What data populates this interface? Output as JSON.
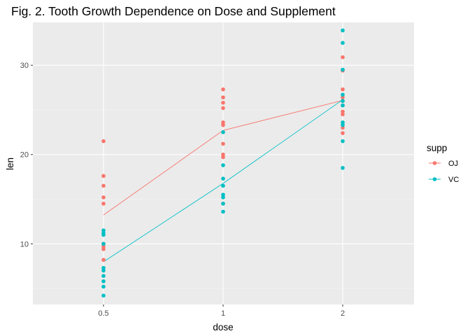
{
  "chart_data": {
    "type": "scatter",
    "title": "Fig. 2. Tooth Growth Dependence on Dose and Supplement",
    "xlabel": "dose",
    "ylabel": "len",
    "x_ticks": [
      "0.5",
      "1",
      "2"
    ],
    "y_ticks": [
      10,
      20,
      30
    ],
    "ylim": [
      3.2,
      34.8
    ],
    "grid": true,
    "legend": {
      "title": "supp",
      "placement": "right"
    },
    "series": [
      {
        "name": "OJ",
        "color": "#F8766D",
        "points": [
          {
            "x": "0.5",
            "y": 21.5
          },
          {
            "x": "0.5",
            "y": 17.6
          },
          {
            "x": "0.5",
            "y": 16.5
          },
          {
            "x": "0.5",
            "y": 15.2
          },
          {
            "x": "0.5",
            "y": 14.5
          },
          {
            "x": "0.5",
            "y": 10.0
          },
          {
            "x": "0.5",
            "y": 9.7
          },
          {
            "x": "0.5",
            "y": 9.4
          },
          {
            "x": "0.5",
            "y": 8.2
          },
          {
            "x": "1",
            "y": 27.3
          },
          {
            "x": "1",
            "y": 26.4
          },
          {
            "x": "1",
            "y": 25.8
          },
          {
            "x": "1",
            "y": 25.2
          },
          {
            "x": "1",
            "y": 23.6
          },
          {
            "x": "1",
            "y": 23.3
          },
          {
            "x": "1",
            "y": 21.2
          },
          {
            "x": "1",
            "y": 20.0
          },
          {
            "x": "1",
            "y": 19.7
          },
          {
            "x": "1",
            "y": 14.5
          },
          {
            "x": "2",
            "y": 30.9
          },
          {
            "x": "2",
            "y": 29.4
          },
          {
            "x": "2",
            "y": 27.3
          },
          {
            "x": "2",
            "y": 26.4
          },
          {
            "x": "2",
            "y": 25.5
          },
          {
            "x": "2",
            "y": 24.8
          },
          {
            "x": "2",
            "y": 24.5
          },
          {
            "x": "2",
            "y": 23.0
          },
          {
            "x": "2",
            "y": 22.4
          },
          {
            "x": "2",
            "y": 26.0
          }
        ],
        "mean_line": [
          {
            "x": "0.5",
            "y": 13.23
          },
          {
            "x": "1",
            "y": 22.7
          },
          {
            "x": "2",
            "y": 26.06
          }
        ]
      },
      {
        "name": "VC",
        "color": "#00BFC4",
        "points": [
          {
            "x": "0.5",
            "y": 11.5
          },
          {
            "x": "0.5",
            "y": 11.2
          },
          {
            "x": "0.5",
            "y": 10.0
          },
          {
            "x": "0.5",
            "y": 7.3
          },
          {
            "x": "0.5",
            "y": 7.0
          },
          {
            "x": "0.5",
            "y": 6.4
          },
          {
            "x": "0.5",
            "y": 5.8
          },
          {
            "x": "0.5",
            "y": 5.2
          },
          {
            "x": "0.5",
            "y": 4.2
          },
          {
            "x": "0.5",
            "y": 11.0
          },
          {
            "x": "1",
            "y": 22.5
          },
          {
            "x": "1",
            "y": 18.8
          },
          {
            "x": "1",
            "y": 17.3
          },
          {
            "x": "1",
            "y": 16.5
          },
          {
            "x": "1",
            "y": 15.5
          },
          {
            "x": "1",
            "y": 15.2
          },
          {
            "x": "1",
            "y": 14.5
          },
          {
            "x": "1",
            "y": 13.6
          },
          {
            "x": "2",
            "y": 33.9
          },
          {
            "x": "2",
            "y": 32.5
          },
          {
            "x": "2",
            "y": 29.5
          },
          {
            "x": "2",
            "y": 26.7
          },
          {
            "x": "2",
            "y": 25.5
          },
          {
            "x": "2",
            "y": 23.6
          },
          {
            "x": "2",
            "y": 23.3
          },
          {
            "x": "2",
            "y": 21.5
          },
          {
            "x": "2",
            "y": 18.5
          },
          {
            "x": "2",
            "y": 26.0
          }
        ],
        "mean_line": [
          {
            "x": "0.5",
            "y": 7.98
          },
          {
            "x": "1",
            "y": 16.77
          },
          {
            "x": "2",
            "y": 26.14
          }
        ]
      }
    ]
  }
}
